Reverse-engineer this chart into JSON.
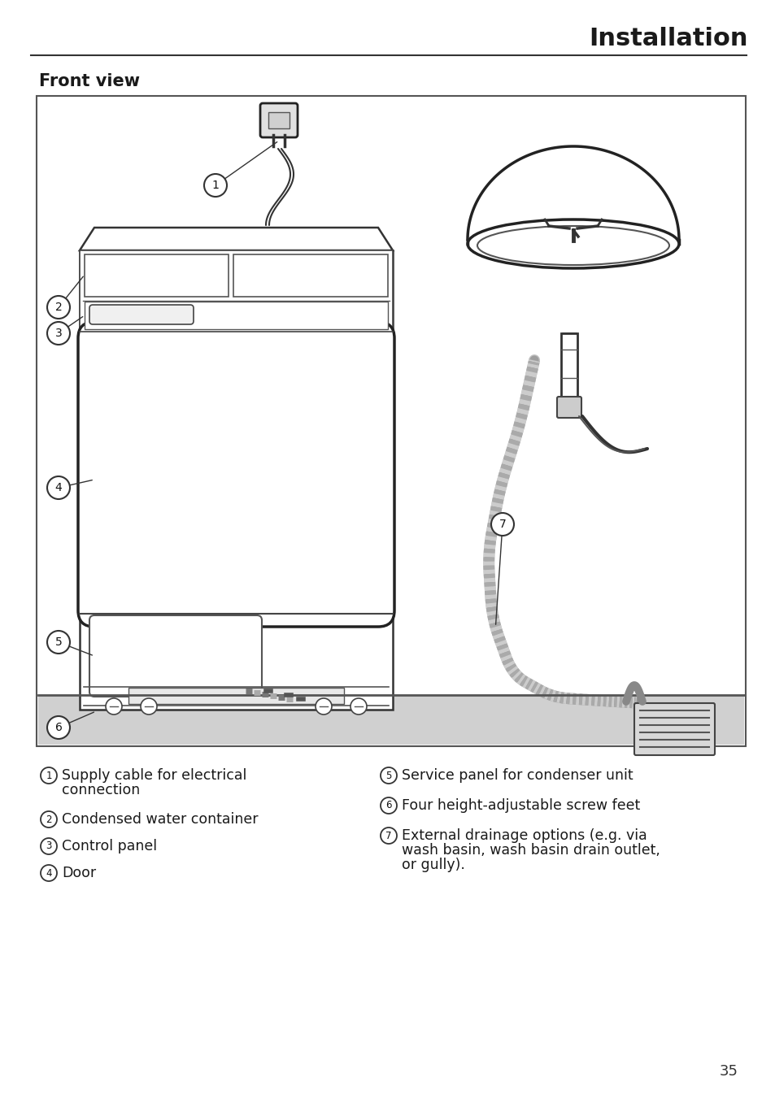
{
  "title": "Installation",
  "subtitle": "Front view",
  "bg_color": "#ffffff",
  "page_number": "35",
  "box_bg": "#ffffff",
  "floor_color": "#d0d0d0",
  "line_color": "#333333"
}
